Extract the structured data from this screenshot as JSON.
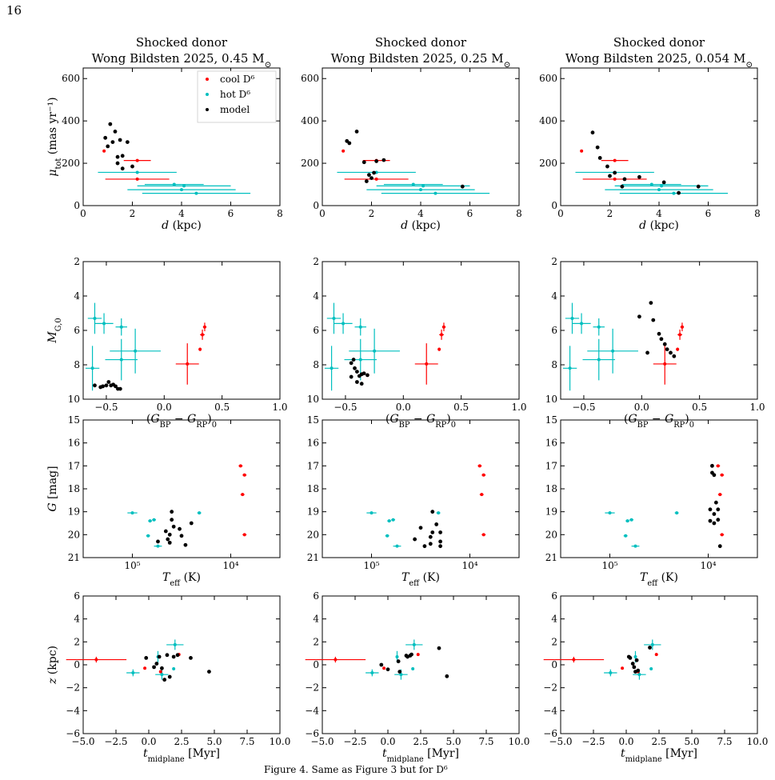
{
  "page": {
    "page_number": "16"
  },
  "titles": [
    {
      "line1": "Shocked donor",
      "line2": "Wong Bildsten 2025,  0.45 M",
      "sub": "⊙"
    },
    {
      "line1": "Shocked donor",
      "line2": "Wong Bildsten 2025,  0.25 M",
      "sub": "⊙"
    },
    {
      "line1": "Shocked donor",
      "line2": "Wong Bildsten 2025,  0.054 M",
      "sub": "⊙"
    }
  ],
  "legend": {
    "placement": "top-right",
    "entries": [
      "cool D⁶",
      "hot D⁶",
      "model"
    ]
  },
  "colors": {
    "cool": "#ff0000",
    "hot": "#00bfbf",
    "model": "#000000",
    "axis": "#000000"
  },
  "row_axes": [
    {
      "ylabel_main": "μ",
      "ylabel_sub": "tot",
      "ylabel_rest": " (mas yr⁻¹)",
      "xlabel": "d (kpc)",
      "xlim": [
        0,
        8
      ],
      "ylim": [
        0,
        650
      ],
      "xticks": [
        0,
        2,
        4,
        6,
        8
      ],
      "xticklabels": [
        "0",
        "2",
        "4",
        "6",
        "8"
      ],
      "yticks": [
        0,
        200,
        400,
        600
      ],
      "yticklabels": [
        "0",
        "200",
        "400",
        "600"
      ],
      "invert_y": false
    },
    {
      "ylabel_main": "M",
      "ylabel_sub": "G,0",
      "ylabel_rest": "",
      "xlabel": "(G_BP − G_RP)_0",
      "xlim": [
        -0.7,
        1.0
      ],
      "ylim": [
        2,
        10
      ],
      "xticks": [
        -0.5,
        0.0,
        0.5,
        1.0
      ],
      "xticklabels": [
        "−0.5",
        "0.0",
        "0.5",
        "1.0"
      ],
      "yticks": [
        2,
        4,
        6,
        8,
        10
      ],
      "yticklabels": [
        "2",
        "4",
        "6",
        "8",
        "10"
      ],
      "invert_y": true
    },
    {
      "ylabel_main": "G",
      "ylabel_sub": "",
      "ylabel_rest": " [mag]",
      "xlabel": "T_eff (K)",
      "xlim": [
        0,
        1
      ],
      "ylim": [
        15,
        21
      ],
      "xticks": [
        0.25,
        0.75
      ],
      "xticklabels": [
        "10⁵",
        "10⁴"
      ],
      "yticks": [
        15,
        16,
        17,
        18,
        19,
        20,
        21
      ],
      "yticklabels": [
        "15",
        "16",
        "17",
        "18",
        "19",
        "20",
        "21"
      ],
      "invert_y": true
    },
    {
      "ylabel_main": "z",
      "ylabel_sub": "",
      "ylabel_rest": " (kpc)",
      "xlabel": "t_midplane [Myr]",
      "xlim": [
        -5,
        10
      ],
      "ylim": [
        -6,
        6
      ],
      "xticks": [
        -5,
        -2.5,
        0,
        2.5,
        5,
        7.5,
        10
      ],
      "xticklabels": [
        "−5.0",
        "−2.5",
        "0.0",
        "2.5",
        "5.0",
        "7.5",
        "10.0"
      ],
      "yticks": [
        -6,
        -4,
        -2,
        0,
        2,
        4,
        6
      ],
      "yticklabels": [
        "−6",
        "−4",
        "−2",
        "0",
        "2",
        "4",
        "6"
      ],
      "invert_y": false
    }
  ],
  "chart_data": {
    "type": "scatter",
    "layout": "4 rows × 3 columns",
    "observed": {
      "distance": {
        "cool": [
          {
            "x": 0.85,
            "y": 258,
            "xerr": 0.05,
            "yerr": 3
          },
          {
            "x": 2.2,
            "y": 213,
            "xerr": 0.55,
            "yerr": 5
          },
          {
            "x": 2.2,
            "y": 125,
            "xerr": 1.3,
            "yerr": 4
          }
        ],
        "hot": [
          {
            "x": 2.2,
            "y": 157,
            "xerr": 1.6,
            "yerr": 3
          },
          {
            "x": 3.7,
            "y": 100,
            "xerr": 1.2,
            "yerr": 3
          },
          {
            "x": 4.1,
            "y": 93,
            "xerr": 1.9,
            "yerr": 3
          },
          {
            "x": 4.0,
            "y": 75,
            "xerr": 2.2,
            "yerr": 3
          },
          {
            "x": 4.6,
            "y": 58,
            "xerr": 2.2,
            "yerr": 3
          }
        ]
      },
      "cmd": {
        "cool": [
          {
            "x": 0.35,
            "y": 5.8,
            "xerr": 0.015,
            "yerr": 0.25
          },
          {
            "x": 0.33,
            "y": 6.25,
            "xerr": 0.02,
            "yerr": 0.3
          },
          {
            "x": 0.31,
            "y": 7.1,
            "xerr": 0.01,
            "yerr": 0.1
          },
          {
            "x": 0.2,
            "y": 7.95,
            "xerr": 0.1,
            "yerr": 1.2
          }
        ],
        "hot": [
          {
            "x": -0.6,
            "y": 5.3,
            "xerr": 0.06,
            "yerr": 0.9
          },
          {
            "x": -0.52,
            "y": 5.6,
            "xerr": 0.08,
            "yerr": 0.6
          },
          {
            "x": -0.37,
            "y": 5.8,
            "xerr": 0.05,
            "yerr": 0.5
          },
          {
            "x": -0.25,
            "y": 7.2,
            "xerr": 0.22,
            "yerr": 1.3
          },
          {
            "x": -0.37,
            "y": 7.7,
            "xerr": 0.14,
            "yerr": 1.2
          },
          {
            "x": -0.62,
            "y": 8.2,
            "xerr": 0.06,
            "yerr": 1.3
          }
        ]
      },
      "teff": {
        "cool": [
          {
            "x": 0.8,
            "y": 17.0,
            "xerr": 0.01
          },
          {
            "x": 0.82,
            "y": 17.4,
            "xerr": 0.01
          },
          {
            "x": 0.81,
            "y": 18.25,
            "xerr": 0.01
          },
          {
            "x": 0.82,
            "y": 20.0,
            "xerr": 0.01
          }
        ],
        "hot": [
          {
            "x": 0.25,
            "y": 19.05,
            "xerr": 0.025
          },
          {
            "x": 0.34,
            "y": 19.4,
            "xerr": 0.01
          },
          {
            "x": 0.36,
            "y": 19.35,
            "xerr": 0.01
          },
          {
            "x": 0.33,
            "y": 20.05,
            "xerr": 0.01
          },
          {
            "x": 0.38,
            "y": 20.5,
            "xerr": 0.02
          },
          {
            "x": 0.59,
            "y": 19.05,
            "xerr": 0.01
          }
        ]
      },
      "midplane": {
        "cool": [
          {
            "x": -4.0,
            "y": 0.45,
            "xerr": 2.3,
            "yerr": 0.25
          },
          {
            "x": -0.3,
            "y": -0.3,
            "xerr": 0.05,
            "yerr": 0.05
          },
          {
            "x": 2.3,
            "y": 0.9,
            "xerr": 0.1,
            "yerr": 0.05
          },
          {
            "x": 0.9,
            "y": -0.6,
            "xerr": 0.05,
            "yerr": 0.05
          }
        ],
        "hot": [
          {
            "x": -1.2,
            "y": -0.7,
            "xerr": 0.5,
            "yerr": 0.3
          },
          {
            "x": 0.7,
            "y": 0.7,
            "xerr": 0.05,
            "yerr": 0.5
          },
          {
            "x": 1.0,
            "y": -0.85,
            "xerr": 0.5,
            "yerr": 0.45
          },
          {
            "x": 2.0,
            "y": 1.75,
            "xerr": 0.65,
            "yerr": 0.45
          },
          {
            "x": 1.9,
            "y": -0.35,
            "xerr": 0.05,
            "yerr": 0.05
          }
        ]
      }
    },
    "model": [
      {
        "distance": [
          [
            0.9,
            320
          ],
          [
            1.1,
            385
          ],
          [
            1.2,
            300
          ],
          [
            1.3,
            350
          ],
          [
            1.0,
            280
          ],
          [
            1.5,
            310
          ],
          [
            1.4,
            230
          ],
          [
            1.6,
            235
          ],
          [
            1.8,
            300
          ],
          [
            1.6,
            175
          ],
          [
            1.4,
            200
          ],
          [
            2.0,
            185
          ]
        ],
        "cmd": [
          [
            -0.6,
            9.2
          ],
          [
            -0.55,
            9.3
          ],
          [
            -0.53,
            9.25
          ],
          [
            -0.5,
            9.2
          ],
          [
            -0.48,
            9.0
          ],
          [
            -0.46,
            9.2
          ],
          [
            -0.44,
            9.15
          ],
          [
            -0.42,
            9.25
          ],
          [
            -0.4,
            9.4
          ],
          [
            -0.38,
            9.4
          ]
        ],
        "teff": [
          [
            0.45,
            19.0
          ],
          [
            0.45,
            19.35
          ],
          [
            0.46,
            19.65
          ],
          [
            0.44,
            20.0
          ],
          [
            0.43,
            20.2
          ],
          [
            0.44,
            20.35
          ],
          [
            0.49,
            19.75
          ],
          [
            0.5,
            20.05
          ],
          [
            0.52,
            20.45
          ],
          [
            0.55,
            19.5
          ],
          [
            0.42,
            19.85
          ],
          [
            0.38,
            20.3
          ]
        ],
        "midplane": [
          [
            -0.2,
            0.6
          ],
          [
            0.4,
            -0.2
          ],
          [
            0.8,
            0.7
          ],
          [
            1.2,
            -1.3
          ],
          [
            1.4,
            0.85
          ],
          [
            1.6,
            -1.05
          ],
          [
            1.9,
            0.7
          ],
          [
            2.2,
            0.85
          ],
          [
            3.2,
            0.6
          ],
          [
            4.6,
            -0.6
          ],
          [
            0.6,
            0.1
          ],
          [
            1.0,
            -0.3
          ]
        ]
      },
      {
        "distance": [
          [
            1.0,
            305
          ],
          [
            1.1,
            295
          ],
          [
            1.4,
            350
          ],
          [
            1.7,
            205
          ],
          [
            1.9,
            145
          ],
          [
            2.1,
            155
          ],
          [
            2.2,
            210
          ],
          [
            2.5,
            215
          ],
          [
            2.0,
            130
          ],
          [
            1.8,
            115
          ],
          [
            5.7,
            90
          ]
        ],
        "cmd": [
          [
            -0.45,
            7.9
          ],
          [
            -0.43,
            7.7
          ],
          [
            -0.42,
            8.2
          ],
          [
            -0.4,
            8.4
          ],
          [
            -0.38,
            8.65
          ],
          [
            -0.36,
            8.55
          ],
          [
            -0.34,
            8.5
          ],
          [
            -0.31,
            8.6
          ],
          [
            -0.45,
            8.7
          ],
          [
            -0.4,
            9.0
          ],
          [
            -0.36,
            9.1
          ]
        ],
        "teff": [
          [
            0.56,
            19.0
          ],
          [
            0.58,
            19.55
          ],
          [
            0.56,
            19.9
          ],
          [
            0.55,
            20.1
          ],
          [
            0.6,
            19.9
          ],
          [
            0.6,
            20.3
          ],
          [
            0.6,
            20.5
          ],
          [
            0.52,
            20.5
          ],
          [
            0.47,
            20.2
          ],
          [
            0.5,
            19.7
          ],
          [
            0.55,
            20.4
          ]
        ],
        "midplane": [
          [
            -0.5,
            0.0
          ],
          [
            0.0,
            -0.4
          ],
          [
            0.8,
            0.3
          ],
          [
            1.5,
            0.7
          ],
          [
            1.7,
            0.8
          ],
          [
            1.8,
            0.9
          ],
          [
            3.9,
            1.45
          ],
          [
            4.5,
            -1.0
          ],
          [
            0.9,
            -0.6
          ],
          [
            1.4,
            0.8
          ]
        ],
        "note": "approximate"
      },
      {
        "distance": [
          [
            1.3,
            345
          ],
          [
            1.5,
            275
          ],
          [
            1.6,
            225
          ],
          [
            1.9,
            185
          ],
          [
            2.0,
            140
          ],
          [
            2.2,
            155
          ],
          [
            2.6,
            125
          ],
          [
            3.2,
            135
          ],
          [
            4.2,
            110
          ],
          [
            4.8,
            60
          ],
          [
            2.5,
            90
          ],
          [
            5.6,
            90
          ]
        ],
        "cmd": [
          [
            0.08,
            4.4
          ],
          [
            -0.02,
            5.2
          ],
          [
            0.1,
            5.4
          ],
          [
            0.15,
            6.2
          ],
          [
            0.17,
            6.5
          ],
          [
            0.2,
            6.8
          ],
          [
            0.22,
            7.1
          ],
          [
            0.25,
            7.3
          ],
          [
            0.28,
            7.5
          ],
          [
            0.05,
            7.3
          ]
        ],
        "teff": [
          [
            0.77,
            17.0
          ],
          [
            0.77,
            17.3
          ],
          [
            0.78,
            17.4
          ],
          [
            0.79,
            18.6
          ],
          [
            0.8,
            18.9
          ],
          [
            0.76,
            18.9
          ],
          [
            0.78,
            19.1
          ],
          [
            0.8,
            19.35
          ],
          [
            0.76,
            19.4
          ],
          [
            0.78,
            19.5
          ],
          [
            0.81,
            20.5
          ]
        ],
        "midplane": [
          [
            0.2,
            0.7
          ],
          [
            0.3,
            0.6
          ],
          [
            0.5,
            0.1
          ],
          [
            0.6,
            -0.2
          ],
          [
            0.7,
            -0.6
          ],
          [
            0.9,
            -0.5
          ],
          [
            1.8,
            1.5
          ],
          [
            0.8,
            0.4
          ]
        ]
      }
    ]
  },
  "caption": "Figure 4. Same as Figure 3 but for D⁶"
}
